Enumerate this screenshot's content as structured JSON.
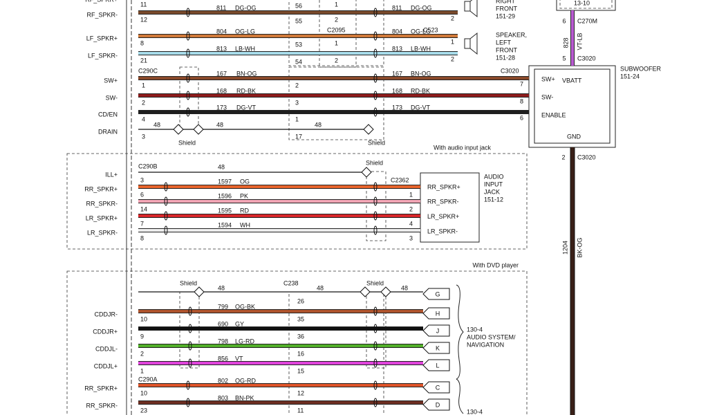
{
  "speakers": {
    "wires": [
      {
        "signal": "RF_SPKR+",
        "pin": "11",
        "splice_pin": "56",
        "connector_pin": "1"
      },
      {
        "signal": "RF_SPKR-",
        "pin": "12",
        "circuit": "811",
        "color_code": "DG-OG",
        "splice_pin": "55",
        "connector_pin": "2",
        "far_circuit": "811",
        "far_color_code": "DG-OG",
        "end_pin": "2",
        "stroke": "#7a4a2c"
      },
      {
        "signal": "LF_SPKR+",
        "pin": "8",
        "circuit": "804",
        "color_code": "OG-LG",
        "splice_pin": "53",
        "connector_pin": "1",
        "far_circuit": "804",
        "far_color_code": "OG-LG",
        "end_pin": "1",
        "stroke": "#d07a3a"
      },
      {
        "signal": "LF_SPKR-",
        "pin": "21",
        "circuit": "813",
        "color_code": "LB-WH",
        "splice_pin": "54",
        "connector_pin": "2",
        "far_circuit": "813",
        "far_color_code": "LB-WH",
        "end_pin": "2",
        "stroke": "#a8dcea"
      }
    ],
    "splice": "C2095",
    "connector": "C523",
    "right_front": [
      "RIGHT",
      "FRONT",
      "151-29"
    ],
    "left_front": [
      "SPEAKER,",
      "LEFT",
      "FRONT",
      "151-28"
    ]
  },
  "subwoofer": {
    "connector": "C290C",
    "wires": [
      {
        "signal": "SW+",
        "pin": "1",
        "circuit": "167",
        "color_code": "BN-OG",
        "splice_pin": "2",
        "far_circuit": "167",
        "far_color_code": "BN-OG",
        "end_pin": "7",
        "stroke": "#8b4a2b"
      },
      {
        "signal": "SW-",
        "pin": "2",
        "circuit": "168",
        "color_code": "RD-BK",
        "splice_pin": "3",
        "far_circuit": "168",
        "far_color_code": "RD-BK",
        "end_pin": "8",
        "stroke": "#8e1c1c"
      },
      {
        "signal": "CD/EN",
        "pin": "4",
        "circuit": "173",
        "color_code": "DG-VT",
        "splice_pin": "1",
        "far_circuit": "173",
        "far_color_code": "DG-VT",
        "end_pin": "6",
        "stroke": "#1e1e1e"
      },
      {
        "signal": "DRAIN",
        "pin": "3",
        "lead_circuit": "48",
        "circuit": "48",
        "splice_pin": "17",
        "mid_circuit": "48"
      }
    ],
    "shields": [
      "Shield",
      "Shield"
    ],
    "far_connector": "C3020",
    "module": {
      "title": [
        "SUBWOOFER",
        "151-24"
      ],
      "pins": [
        "SW+",
        "SW-",
        "ENABLE"
      ],
      "power": "VBATT",
      "ground": "GND"
    },
    "power_feed": {
      "top_label": "13-10",
      "pin_a": "6",
      "connector_a": "C270M",
      "circuit": "828",
      "color_code": "VT-LB",
      "pin_b": "5",
      "connector_b": "C3020"
    },
    "ground_feed": {
      "pin": "2",
      "connector": "C3020",
      "circuit": "1204",
      "color_code": "BK-OG"
    }
  },
  "audio_jack": {
    "caption": "With audio input jack",
    "connector": "C290B",
    "shield": "Shield",
    "far_connector": "C2362",
    "wires": [
      {
        "signal": "ILL+",
        "pin": "3",
        "circuit": "48"
      },
      {
        "signal": "RR_SPKR+",
        "pin": "6",
        "circuit": "1597",
        "color_code": "OG",
        "end_pin": "1",
        "stroke": "#e8642c"
      },
      {
        "signal": "RR_SPKR-",
        "pin": "14",
        "circuit": "1596",
        "color_code": "PK",
        "end_pin": "2",
        "stroke": "#f2a6b6"
      },
      {
        "signal": "LR_SPKR+",
        "pin": "7",
        "circuit": "1595",
        "color_code": "RD",
        "end_pin": "4",
        "stroke": "#d9262a"
      },
      {
        "signal": "LR_SPKR-",
        "pin": "8",
        "circuit": "1594",
        "color_code": "WH",
        "end_pin": "3",
        "stroke": "#eeeeee"
      }
    ],
    "module": {
      "pins": [
        "RR_SPKR+",
        "RR_SPKR-",
        "LR_SPKR+",
        "LR_SPKR-"
      ],
      "title": [
        "AUDIO",
        "INPUT",
        "JACK",
        "151-12"
      ]
    }
  },
  "dvd": {
    "caption": "With DVD player",
    "shield_wire": {
      "shields": [
        "Shield",
        "Shield"
      ],
      "circuit": "48",
      "splice": "C238",
      "mid_circuit": "48",
      "splice_pin": "26",
      "far_circuit": "48",
      "terminal": "G"
    },
    "wires": [
      {
        "signal": "CDDJR-",
        "pin": "10",
        "circuit": "799",
        "color_code": "OG-BK",
        "splice_pin": "35",
        "terminal": "H",
        "stroke": "#b0552e"
      },
      {
        "signal": "CDDJR+",
        "pin": "9",
        "circuit": "690",
        "color_code": "GY",
        "splice_pin": "36",
        "terminal": "J",
        "stroke": "#111111"
      },
      {
        "signal": "CDDJL-",
        "pin": "2",
        "circuit": "798",
        "color_code": "LG-RD",
        "splice_pin": "16",
        "terminal": "K",
        "stroke": "#52b02a"
      },
      {
        "signal": "CDDJL+",
        "pin": "1",
        "circuit": "856",
        "color_code": "VT",
        "splice_pin": "15",
        "terminal": "L",
        "stroke": "#e044dc"
      }
    ],
    "module": [
      "130-4",
      "AUDIO SYSTEM/",
      "NAVIGATION"
    ],
    "connector": "C290A",
    "speaker_wires": [
      {
        "signal": "RR_SPKR+",
        "pin": "10",
        "circuit": "802",
        "color_code": "OG-RD",
        "splice_pin": "12",
        "terminal": "C",
        "stroke": "#e0552a"
      },
      {
        "signal": "RR_SPKR-",
        "pin": "23",
        "circuit": "803",
        "color_code": "BN-PK",
        "splice_pin": "11",
        "terminal": "D",
        "stroke": "#6e2f22"
      }
    ],
    "module_2": "130-4"
  }
}
